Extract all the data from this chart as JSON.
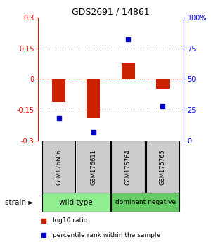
{
  "title": "GDS2691 / 14861",
  "samples": [
    "GSM176606",
    "GSM176611",
    "GSM175764",
    "GSM175765"
  ],
  "log10_ratio": [
    -0.11,
    -0.19,
    0.075,
    -0.045
  ],
  "percentile_rank": [
    18,
    7,
    82,
    28
  ],
  "groups": [
    {
      "label": "wild type",
      "samples": [
        0,
        1
      ],
      "color": "#90EE90"
    },
    {
      "label": "dominant negative",
      "samples": [
        2,
        3
      ],
      "color": "#66CC66"
    }
  ],
  "ylim": [
    -0.3,
    0.3
  ],
  "yticks_left": [
    -0.3,
    -0.15,
    0,
    0.15,
    0.3
  ],
  "yticks_right": [
    0,
    25,
    50,
    75,
    100
  ],
  "bar_color": "#CC2200",
  "dot_color": "#0000CC",
  "zero_line_color": "#CC2200",
  "dotted_line_color": "#888888",
  "group_label_x": "strain",
  "legend_log10": "log10 ratio",
  "legend_pct": "percentile rank within the sample",
  "sample_box_color": "#CCCCCC",
  "left_spine_color": "#CC2200",
  "right_spine_color": "#0000CC"
}
